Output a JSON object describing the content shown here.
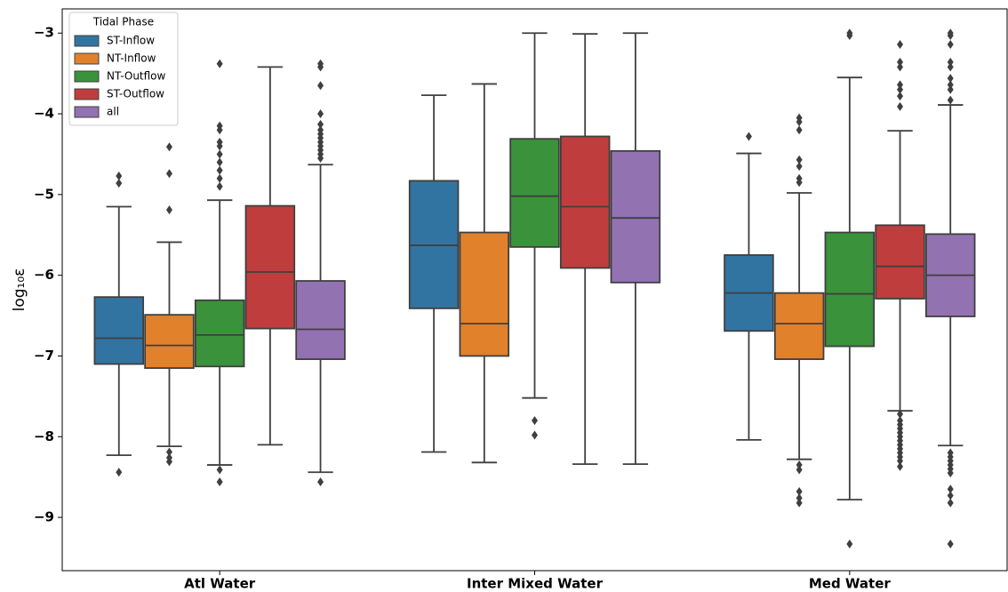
{
  "chart_data": {
    "type": "box",
    "y_label": "log₁₀ε",
    "categories": [
      "Atl Water",
      "Inter Mixed Water",
      "Med Water"
    ],
    "ylim": [
      -9.66,
      -2.7
    ],
    "yticks": [
      {
        "value": -3,
        "label": "−3"
      },
      {
        "value": -4,
        "label": "−4"
      },
      {
        "value": -5,
        "label": "−5"
      },
      {
        "value": -6,
        "label": "−6"
      },
      {
        "value": -7,
        "label": "−7"
      },
      {
        "value": -8,
        "label": "−8"
      },
      {
        "value": -9,
        "label": "−9"
      }
    ],
    "legend_title": "Tidal Phase",
    "legend_loc": "upper left",
    "series": [
      {
        "name": "ST-Inflow",
        "color": "#3274a1",
        "boxes": [
          {
            "whislo": -8.23,
            "q1": -7.1,
            "med": -6.78,
            "q3": -6.27,
            "whishi": -5.15,
            "fliers": [
              -4.77,
              -4.86,
              -8.44
            ]
          },
          {
            "whislo": -8.19,
            "q1": -6.41,
            "med": -5.63,
            "q3": -4.83,
            "whishi": -3.77,
            "fliers": []
          },
          {
            "whislo": -8.04,
            "q1": -6.69,
            "med": -6.22,
            "q3": -5.75,
            "whishi": -4.49,
            "fliers": [
              -4.28
            ]
          }
        ]
      },
      {
        "name": "NT-Inflow",
        "color": "#e1812c",
        "boxes": [
          {
            "whislo": -8.12,
            "q1": -7.15,
            "med": -6.87,
            "q3": -6.49,
            "whishi": -5.59,
            "fliers": [
              -4.41,
              -4.74,
              -5.19,
              -8.19,
              -8.26,
              -8.31
            ]
          },
          {
            "whislo": -8.32,
            "q1": -7.0,
            "med": -6.6,
            "q3": -5.47,
            "whishi": -3.63,
            "fliers": []
          },
          {
            "whislo": -8.28,
            "q1": -7.04,
            "med": -6.6,
            "q3": -6.22,
            "whishi": -4.98,
            "fliers": [
              -4.05,
              -4.1,
              -4.2,
              -4.57,
              -4.65,
              -4.8,
              -4.85,
              -8.35,
              -8.41,
              -8.68,
              -8.76,
              -8.82
            ]
          }
        ]
      },
      {
        "name": "NT-Outflow",
        "color": "#3a923a",
        "boxes": [
          {
            "whislo": -8.35,
            "q1": -7.13,
            "med": -6.74,
            "q3": -6.31,
            "whishi": -5.07,
            "fliers": [
              -3.38,
              -4.15,
              -4.2,
              -4.35,
              -4.4,
              -4.5,
              -4.6,
              -4.7,
              -4.8,
              -4.9,
              -8.41,
              -8.56
            ]
          },
          {
            "whislo": -7.52,
            "q1": -5.65,
            "med": -5.02,
            "q3": -4.31,
            "whishi": -3.0,
            "fliers": [
              -7.8,
              -7.98
            ]
          },
          {
            "whislo": -8.78,
            "q1": -6.88,
            "med": -6.23,
            "q3": -5.47,
            "whishi": -3.55,
            "fliers": [
              -3.0,
              -3.03,
              -9.33
            ]
          }
        ]
      },
      {
        "name": "ST-Outflow",
        "color": "#c03d3e",
        "boxes": [
          {
            "whislo": -8.1,
            "q1": -6.66,
            "med": -5.96,
            "q3": -5.14,
            "whishi": -3.42,
            "fliers": []
          },
          {
            "whislo": -8.34,
            "q1": -5.91,
            "med": -5.15,
            "q3": -4.28,
            "whishi": -3.01,
            "fliers": []
          },
          {
            "whislo": -7.68,
            "q1": -6.29,
            "med": -5.89,
            "q3": -5.38,
            "whishi": -4.21,
            "fliers": [
              -3.14,
              -3.36,
              -3.42,
              -3.64,
              -3.7,
              -3.78,
              -3.91,
              -7.72,
              -7.8,
              -7.85,
              -7.9,
              -7.95,
              -8.0,
              -8.05,
              -8.1,
              -8.15,
              -8.2,
              -8.25,
              -8.3,
              -8.37
            ]
          }
        ]
      },
      {
        "name": "all",
        "color": "#9372b2",
        "boxes": [
          {
            "whislo": -8.44,
            "q1": -7.04,
            "med": -6.67,
            "q3": -6.07,
            "whishi": -4.63,
            "fliers": [
              -3.38,
              -3.42,
              -3.65,
              -4.0,
              -4.13,
              -4.2,
              -4.25,
              -4.3,
              -4.35,
              -4.4,
              -4.45,
              -4.5,
              -4.55,
              -8.56
            ]
          },
          {
            "whislo": -8.34,
            "q1": -6.09,
            "med": -5.29,
            "q3": -4.46,
            "whishi": -3.0,
            "fliers": []
          },
          {
            "whislo": -8.11,
            "q1": -6.51,
            "med": -6.0,
            "q3": -5.49,
            "whishi": -3.89,
            "fliers": [
              -3.0,
              -3.03,
              -3.14,
              -3.36,
              -3.42,
              -3.56,
              -3.64,
              -3.7,
              -3.83,
              -8.2,
              -8.25,
              -8.3,
              -8.35,
              -8.4,
              -8.45,
              -8.65,
              -8.73,
              -8.82,
              -9.33
            ]
          }
        ]
      }
    ]
  }
}
